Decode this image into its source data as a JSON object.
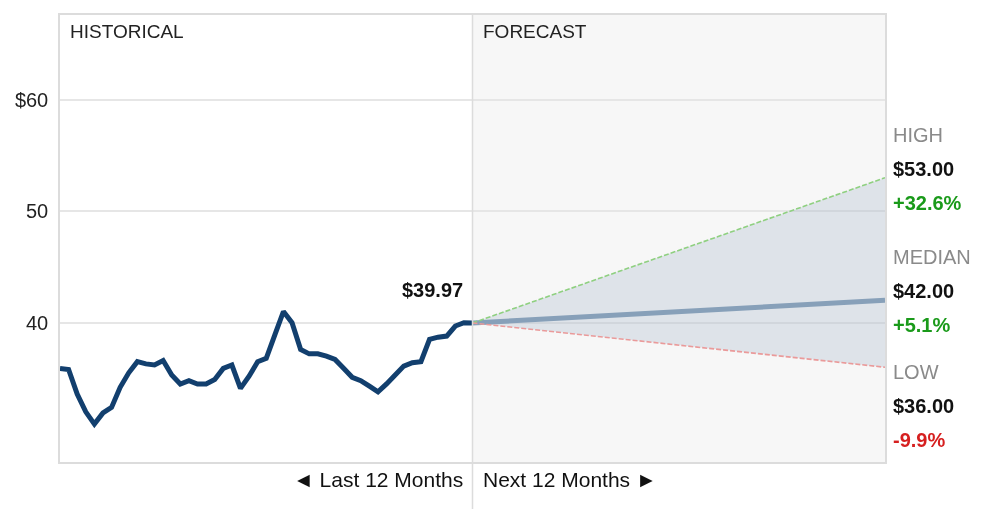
{
  "chart_data": {
    "type": "line",
    "ylim": [
      27.5,
      67.6
    ],
    "yticks": [
      40,
      50,
      {
        "value": 60,
        "label": "$60"
      }
    ],
    "grid": "y",
    "tick_labels": "y",
    "marker": "none",
    "categories": [
      null,
      null,
      null,
      null,
      null,
      null,
      null,
      null,
      null,
      null,
      null,
      null,
      null,
      null,
      null,
      null,
      null,
      null,
      null,
      null,
      null,
      null,
      null,
      null,
      null,
      null,
      null,
      null,
      null,
      null,
      null,
      null,
      null,
      null,
      null,
      null,
      null,
      null,
      null,
      null,
      null,
      null,
      null,
      null,
      null,
      null,
      null,
      null,
      null,
      null,
      null,
      null,
      null,
      null,
      null,
      null,
      null,
      null,
      null,
      null,
      null,
      null,
      null,
      null,
      null,
      null,
      null,
      null,
      null,
      null,
      null,
      null,
      null,
      null,
      null,
      null,
      null,
      null,
      null,
      null,
      null,
      null,
      null,
      null,
      null,
      null,
      null,
      null,
      null,
      null,
      null,
      null,
      null,
      null,
      null,
      null,
      null
    ],
    "series": [
      {
        "color": "#123f6e",
        "values": [
          35.9,
          35.8,
          33.6,
          32.0,
          30.9,
          31.9,
          32.4,
          34.2,
          35.5,
          36.5,
          36.3,
          36.2,
          36.6,
          35.3,
          34.5,
          34.8,
          34.5,
          34.5,
          34.9,
          35.9,
          36.2,
          34.1,
          35.2,
          36.5,
          36.8,
          38.9,
          41.0,
          40.0,
          37.6,
          37.2,
          37.2,
          37.0,
          36.7,
          35.9,
          35.1,
          34.8,
          34.3,
          33.8,
          34.5,
          35.3,
          36.1,
          36.4,
          36.5,
          38.5,
          38.7,
          38.8,
          39.7,
          40.0,
          39.97,
          null,
          null,
          null,
          null,
          null,
          null,
          null,
          null,
          null,
          null,
          null,
          null,
          null,
          null,
          null,
          null,
          null,
          null,
          null,
          null,
          null,
          null,
          null,
          null,
          null,
          null,
          null,
          null,
          null,
          null,
          null,
          null,
          null,
          null,
          null,
          null,
          null,
          null,
          null,
          null,
          null,
          null,
          null,
          null,
          null,
          null,
          null,
          null
        ],
        "value_labels": [
          null,
          null,
          null,
          null,
          null,
          null,
          null,
          null,
          null,
          null,
          null,
          null,
          null,
          null,
          null,
          null,
          null,
          null,
          null,
          null,
          null,
          null,
          null,
          null,
          null,
          null,
          null,
          null,
          null,
          null,
          null,
          null,
          null,
          null,
          null,
          null,
          null,
          null,
          null,
          null,
          null,
          null,
          null,
          null,
          null,
          null,
          null,
          null,
          "$39.97",
          null,
          null,
          null,
          null,
          null,
          null,
          null,
          null,
          null,
          null,
          null,
          null,
          null,
          null,
          null,
          null,
          null,
          null,
          null,
          null,
          null,
          null,
          null,
          null,
          null,
          null,
          null,
          null,
          null,
          null,
          null,
          null,
          null,
          null,
          null,
          null,
          null,
          null,
          null,
          null,
          null,
          null,
          null,
          null,
          null,
          null,
          null,
          null
        ]
      },
      {
        "color": "#8fd080",
        "line_style": "dashed",
        "values": [
          null,
          null,
          null,
          null,
          null,
          null,
          null,
          null,
          null,
          null,
          null,
          null,
          null,
          null,
          null,
          null,
          null,
          null,
          null,
          null,
          null,
          null,
          null,
          null,
          null,
          null,
          null,
          null,
          null,
          null,
          null,
          null,
          null,
          null,
          null,
          null,
          null,
          null,
          null,
          null,
          null,
          null,
          null,
          null,
          null,
          null,
          null,
          null,
          39.97,
          null,
          null,
          null,
          null,
          null,
          null,
          null,
          null,
          null,
          null,
          null,
          null,
          null,
          null,
          null,
          null,
          null,
          null,
          null,
          null,
          null,
          null,
          null,
          null,
          null,
          null,
          null,
          null,
          null,
          null,
          null,
          null,
          null,
          null,
          null,
          null,
          null,
          null,
          null,
          null,
          null,
          null,
          null,
          null,
          null,
          null,
          null,
          53
        ],
        "value_labels": [
          null,
          null,
          null,
          null,
          null,
          null,
          null,
          null,
          null,
          null,
          null,
          null,
          null,
          null,
          null,
          null,
          null,
          null,
          null,
          null,
          null,
          null,
          null,
          null,
          null,
          null,
          null,
          null,
          null,
          null,
          null,
          null,
          null,
          null,
          null,
          null,
          null,
          null,
          null,
          null,
          null,
          null,
          null,
          null,
          null,
          null,
          null,
          null,
          null,
          null,
          null,
          null,
          null,
          null,
          null,
          null,
          null,
          null,
          null,
          null,
          null,
          null,
          null,
          null,
          null,
          null,
          null,
          null,
          null,
          null,
          null,
          null,
          null,
          null,
          null,
          null,
          null,
          null,
          null,
          null,
          null,
          null,
          null,
          null,
          null,
          null,
          null,
          null,
          null,
          null,
          null,
          null,
          null,
          null,
          null,
          null,
          "$53.00"
        ]
      },
      {
        "color": "#87a0b9",
        "values": [
          null,
          null,
          null,
          null,
          null,
          null,
          null,
          null,
          null,
          null,
          null,
          null,
          null,
          null,
          null,
          null,
          null,
          null,
          null,
          null,
          null,
          null,
          null,
          null,
          null,
          null,
          null,
          null,
          null,
          null,
          null,
          null,
          null,
          null,
          null,
          null,
          null,
          null,
          null,
          null,
          null,
          null,
          null,
          null,
          null,
          null,
          null,
          null,
          39.97,
          null,
          null,
          null,
          null,
          null,
          null,
          null,
          null,
          null,
          null,
          null,
          null,
          null,
          null,
          null,
          null,
          null,
          null,
          null,
          null,
          null,
          null,
          null,
          null,
          null,
          null,
          null,
          null,
          null,
          null,
          null,
          null,
          null,
          null,
          null,
          null,
          null,
          null,
          null,
          null,
          null,
          null,
          null,
          null,
          null,
          null,
          null,
          42
        ],
        "value_labels": [
          null,
          null,
          null,
          null,
          null,
          null,
          null,
          null,
          null,
          null,
          null,
          null,
          null,
          null,
          null,
          null,
          null,
          null,
          null,
          null,
          null,
          null,
          null,
          null,
          null,
          null,
          null,
          null,
          null,
          null,
          null,
          null,
          null,
          null,
          null,
          null,
          null,
          null,
          null,
          null,
          null,
          null,
          null,
          null,
          null,
          null,
          null,
          null,
          null,
          null,
          null,
          null,
          null,
          null,
          null,
          null,
          null,
          null,
          null,
          null,
          null,
          null,
          null,
          null,
          null,
          null,
          null,
          null,
          null,
          null,
          null,
          null,
          null,
          null,
          null,
          null,
          null,
          null,
          null,
          null,
          null,
          null,
          null,
          null,
          null,
          null,
          null,
          null,
          null,
          null,
          null,
          null,
          null,
          null,
          null,
          null,
          "$42.00"
        ]
      },
      {
        "color": "#ea9a9a",
        "line_style": "dashed",
        "values": [
          null,
          null,
          null,
          null,
          null,
          null,
          null,
          null,
          null,
          null,
          null,
          null,
          null,
          null,
          null,
          null,
          null,
          null,
          null,
          null,
          null,
          null,
          null,
          null,
          null,
          null,
          null,
          null,
          null,
          null,
          null,
          null,
          null,
          null,
          null,
          null,
          null,
          null,
          null,
          null,
          null,
          null,
          null,
          null,
          null,
          null,
          null,
          null,
          39.97,
          null,
          null,
          null,
          null,
          null,
          null,
          null,
          null,
          null,
          null,
          null,
          null,
          null,
          null,
          null,
          null,
          null,
          null,
          null,
          null,
          null,
          null,
          null,
          null,
          null,
          null,
          null,
          null,
          null,
          null,
          null,
          null,
          null,
          null,
          null,
          null,
          null,
          null,
          null,
          null,
          null,
          null,
          null,
          null,
          null,
          null,
          null,
          36
        ],
        "value_labels": [
          null,
          null,
          null,
          null,
          null,
          null,
          null,
          null,
          null,
          null,
          null,
          null,
          null,
          null,
          null,
          null,
          null,
          null,
          null,
          null,
          null,
          null,
          null,
          null,
          null,
          null,
          null,
          null,
          null,
          null,
          null,
          null,
          null,
          null,
          null,
          null,
          null,
          null,
          null,
          null,
          null,
          null,
          null,
          null,
          null,
          null,
          null,
          null,
          null,
          null,
          null,
          null,
          null,
          null,
          null,
          null,
          null,
          null,
          null,
          null,
          null,
          null,
          null,
          null,
          null,
          null,
          null,
          null,
          null,
          null,
          null,
          null,
          null,
          null,
          null,
          null,
          null,
          null,
          null,
          null,
          null,
          null,
          null,
          null,
          null,
          null,
          null,
          null,
          null,
          null,
          null,
          null,
          null,
          null,
          null,
          null,
          "$36.00"
        ]
      }
    ],
    "annotations": [
      "HISTORICAL",
      "FORECAST",
      "◄ Last 12 Months",
      "Next 12 Months ►",
      "HIGH",
      "+32.6%",
      "MEDIAN",
      "+5.1%",
      "LOW",
      "-9.9%"
    ]
  }
}
